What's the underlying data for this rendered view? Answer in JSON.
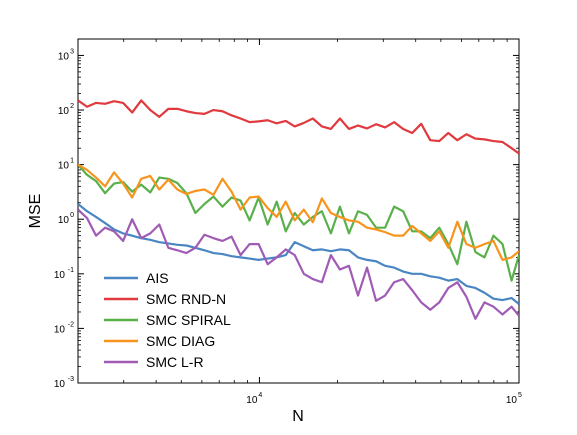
{
  "chart_data": {
    "type": "line",
    "title": "",
    "xlabel": "N",
    "ylabel": "MSE",
    "xscale": "log",
    "yscale": "log",
    "xlim": [
      2000,
      100000
    ],
    "ylim": [
      0.001,
      2000
    ],
    "grid": false,
    "legend_position": "bottom-left",
    "x_ticks": [
      {
        "value": 10000,
        "base": "10",
        "exp": "4"
      },
      {
        "value": 100000,
        "base": "10",
        "exp": "5"
      }
    ],
    "y_ticks": [
      {
        "value": 0.001,
        "base": "10",
        "exp": "-3"
      },
      {
        "value": 0.01,
        "base": "10",
        "exp": "-2"
      },
      {
        "value": 0.1,
        "base": "10",
        "exp": "-1"
      },
      {
        "value": 1,
        "base": "10",
        "exp": "0"
      },
      {
        "value": 10,
        "base": "10",
        "exp": "1"
      },
      {
        "value": 100,
        "base": "10",
        "exp": "2"
      },
      {
        "value": 1000,
        "base": "10",
        "exp": "3"
      }
    ],
    "x": [
      2000,
      2167,
      2347,
      2543,
      2755,
      2985,
      3234,
      3504,
      3796,
      4113,
      4456,
      4828,
      5230,
      5667,
      6139,
      6652,
      7206,
      7808,
      8459,
      9165,
      9929,
      10757,
      11655,
      12627,
      13680,
      14822,
      16058,
      17398,
      18850,
      20422,
      22126,
      23972,
      25971,
      28138,
      30486,
      33029,
      35785,
      38770,
      42004,
      45508,
      49305,
      53418,
      57875,
      62703,
      67934,
      73602,
      79742,
      86395,
      93602,
      100000
    ],
    "series": [
      {
        "name": "AIS",
        "color": "#4a86c3",
        "values": [
          1.9,
          1.4,
          1.1,
          0.85,
          0.65,
          0.55,
          0.5,
          0.45,
          0.42,
          0.38,
          0.36,
          0.34,
          0.33,
          0.3,
          0.27,
          0.24,
          0.23,
          0.21,
          0.2,
          0.19,
          0.18,
          0.19,
          0.2,
          0.22,
          0.38,
          0.32,
          0.27,
          0.28,
          0.26,
          0.28,
          0.27,
          0.2,
          0.18,
          0.17,
          0.14,
          0.13,
          0.11,
          0.1,
          0.1,
          0.09,
          0.085,
          0.075,
          0.08,
          0.06,
          0.055,
          0.045,
          0.035,
          0.033,
          0.036,
          0.028
        ]
      },
      {
        "name": "SMC RND-N",
        "color": "#e0393e",
        "values": [
          150,
          115,
          135,
          130,
          145,
          135,
          90,
          150,
          100,
          75,
          105,
          105,
          95,
          88,
          85,
          100,
          95,
          80,
          70,
          60,
          62,
          65,
          57,
          63,
          50,
          58,
          70,
          50,
          45,
          70,
          45,
          52,
          46,
          55,
          48,
          60,
          45,
          38,
          56,
          28,
          27,
          38,
          28,
          36,
          30,
          29,
          27,
          26,
          20,
          16
        ]
      },
      {
        "name": "SMC SPIRAL",
        "color": "#5ab04b",
        "values": [
          10,
          6.5,
          5,
          3,
          4.5,
          4.8,
          3.2,
          4.3,
          3.1,
          5.8,
          5.5,
          4.6,
          3,
          1.3,
          1.9,
          2.6,
          1.7,
          2.5,
          2.2,
          0.95,
          2.5,
          0.8,
          2.1,
          0.6,
          1.3,
          0.8,
          1.1,
          1.4,
          0.55,
          1.7,
          0.55,
          1.4,
          1.2,
          0.7,
          0.7,
          1.7,
          1.4,
          0.6,
          0.6,
          0.45,
          0.7,
          0.35,
          0.15,
          0.9,
          0.25,
          0.2,
          0.5,
          0.35,
          0.075,
          0.22
        ]
      },
      {
        "name": "SMC DIAG",
        "color": "#f7941d",
        "values": [
          10,
          8,
          5.8,
          4,
          7.2,
          4.5,
          2.5,
          5.5,
          6.2,
          3.5,
          5.3,
          3.5,
          2.9,
          3.3,
          3.5,
          2.8,
          5.5,
          3.2,
          1.5,
          2.5,
          2.6,
          1.6,
          1.1,
          2.1,
          0.95,
          1.5,
          0.88,
          2.4,
          1.3,
          1.1,
          0.95,
          0.9,
          0.7,
          0.65,
          0.58,
          0.5,
          0.5,
          0.75,
          0.55,
          0.4,
          0.6,
          0.3,
          0.9,
          0.35,
          0.3,
          0.35,
          0.4,
          0.18,
          0.2,
          0.26
        ]
      },
      {
        "name": "SMC L-R",
        "color": "#a05cb5",
        "values": [
          1.5,
          1.05,
          0.5,
          0.7,
          0.6,
          0.4,
          1.0,
          0.45,
          0.55,
          0.8,
          0.3,
          0.27,
          0.24,
          0.3,
          0.52,
          0.45,
          0.4,
          0.48,
          0.22,
          0.35,
          0.35,
          0.15,
          0.2,
          0.28,
          0.22,
          0.1,
          0.08,
          0.07,
          0.22,
          0.12,
          0.14,
          0.04,
          0.13,
          0.032,
          0.04,
          0.07,
          0.08,
          0.05,
          0.03,
          0.022,
          0.03,
          0.055,
          0.07,
          0.038,
          0.015,
          0.03,
          0.025,
          0.018,
          0.025,
          0.017
        ]
      }
    ]
  }
}
